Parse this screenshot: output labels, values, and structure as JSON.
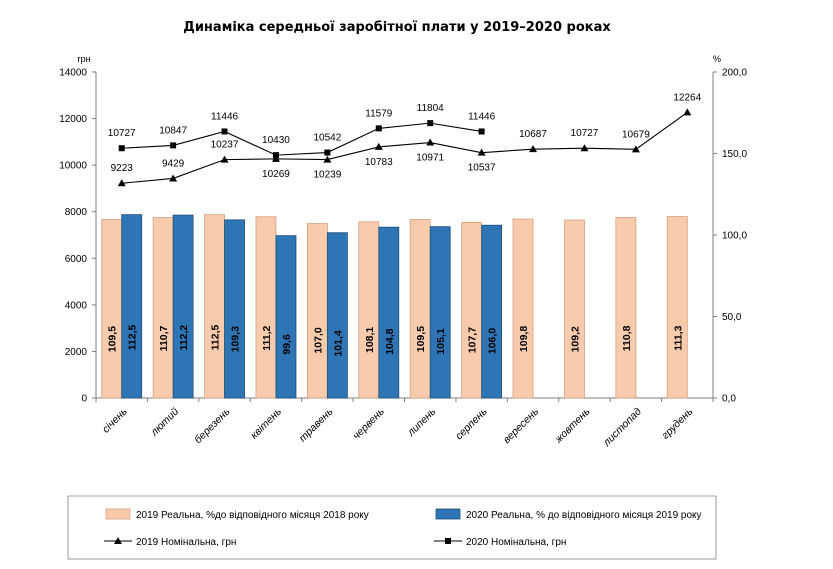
{
  "chart_data": {
    "type": "bar",
    "title": "Динаміка середньої заробітної плати у 2019–2020 роках",
    "left_axis_unit": "грн",
    "right_axis_unit": "%",
    "categories": [
      "січень",
      "лютий",
      "березень",
      "квітень",
      "травень",
      "червень",
      "липень",
      "серпень",
      "вересень",
      "жовтень",
      "листопад",
      "грудень"
    ],
    "left_axis": {
      "ylim": [
        0,
        14000
      ],
      "ticks": [
        "0",
        "2000",
        "4000",
        "6000",
        "8000",
        "10000",
        "12000",
        "14000"
      ]
    },
    "right_axis": {
      "ylim": [
        0,
        200
      ],
      "ticks": [
        "0,0",
        "50,0",
        "100,0",
        "150,0",
        "200,0"
      ]
    },
    "bar_series": [
      {
        "name": "2019 Реальна, %до відповідного місяця 2018 року",
        "color": "#F8CBAD",
        "stroke": "#D4A07E",
        "values": [
          109.5,
          110.7,
          112.5,
          111.2,
          107.0,
          108.1,
          109.5,
          107.7,
          109.8,
          109.2,
          110.8,
          111.3
        ],
        "labels": [
          "109,5",
          "110,7",
          "112,5",
          "111,2",
          "107,0",
          "108,1",
          "109,5",
          "107,7",
          "109,8",
          "109,2",
          "110,8",
          "111,3"
        ]
      },
      {
        "name": "2020 Реальна, % до відповідного місяця 2019 року",
        "color": "#2E75B6",
        "stroke": "#1F4E79",
        "values": [
          112.5,
          112.2,
          109.3,
          99.6,
          101.4,
          104.8,
          105.1,
          106.0
        ],
        "labels": [
          "112,5",
          "112,2",
          "109,3",
          "99,6",
          "101,4",
          "104,8",
          "105,1",
          "106,0"
        ]
      }
    ],
    "line_series": [
      {
        "name": "2019 Номінальна, грн",
        "marker": "triangle",
        "values": [
          9223,
          9429,
          10237,
          10269,
          10239,
          10783,
          10971,
          10537,
          10687,
          10727,
          10679,
          12264
        ],
        "labels": [
          "9223",
          "9429",
          "10237",
          "10269",
          "10239",
          "10783",
          "10971",
          "10537",
          "10687",
          "10727",
          "10679",
          "12264"
        ]
      },
      {
        "name": "2020 Номінальна, грн",
        "marker": "square",
        "values": [
          10727,
          10847,
          11446,
          10430,
          10542,
          11579,
          11804,
          11446
        ],
        "labels": [
          "10727",
          "10847",
          "11446",
          "10430",
          "10542",
          "11579",
          "11804",
          "11446"
        ]
      }
    ],
    "legend_position": "bottom"
  }
}
